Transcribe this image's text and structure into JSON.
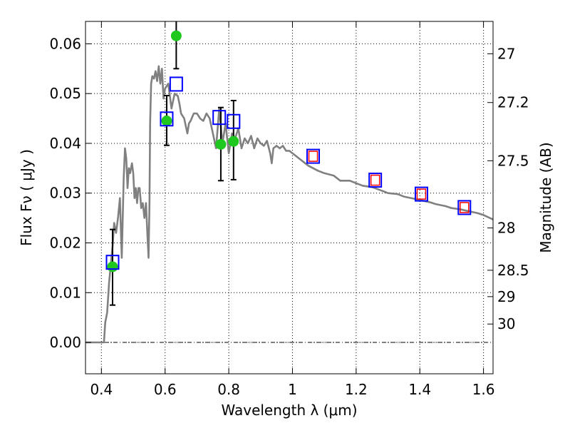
{
  "chart_data": {
    "type": "scatter",
    "title": "",
    "xlabel": "Wavelength  λ (μm)",
    "ylabel": "Flux  Fν  ( μJy )",
    "y2label": "Magnitude (AB)",
    "xlim": [
      0.35,
      1.63
    ],
    "ylim": [
      -0.0063,
      0.0645
    ],
    "grid": true,
    "x_ticks": [
      0.4,
      0.6,
      0.8,
      1.0,
      1.2,
      1.4,
      1.6
    ],
    "x_tick_labels": [
      "0.4",
      "0.6",
      "0.8",
      "1",
      "1.2",
      "1.4",
      "1.6"
    ],
    "y_ticks": [
      0.0,
      0.01,
      0.02,
      0.03,
      0.04,
      0.05,
      0.06
    ],
    "y_tick_labels": [
      "0.00",
      "0.01",
      "0.02",
      "0.03",
      "0.04",
      "0.05",
      "0.06"
    ],
    "y2_ticks": [
      {
        "label": "27",
        "flux": 0.058
      },
      {
        "label": "27.2",
        "flux": 0.0482
      },
      {
        "label": "27.5",
        "flux": 0.0365
      },
      {
        "label": "28",
        "flux": 0.023
      },
      {
        "label": "28.5",
        "flux": 0.0145
      },
      {
        "label": "29",
        "flux": 0.0092
      },
      {
        "label": "30",
        "flux": 0.0037
      }
    ],
    "colors": {
      "model": "#808080",
      "observed": "#1ec81e",
      "model_photometry": "#0000ff",
      "inner_marker": "#ff0000",
      "error_bar": "#000000",
      "zero_line": "#000000"
    },
    "series": [
      {
        "name": "SED model",
        "kind": "line",
        "x": [
          0.35,
          0.408,
          0.412,
          0.418,
          0.424,
          0.43,
          0.436,
          0.44,
          0.446,
          0.452,
          0.458,
          0.464,
          0.47,
          0.474,
          0.478,
          0.482,
          0.486,
          0.49,
          0.496,
          0.5,
          0.504,
          0.508,
          0.512,
          0.516,
          0.52,
          0.525,
          0.53,
          0.535,
          0.54,
          0.545,
          0.548,
          0.551,
          0.553,
          0.556,
          0.56,
          0.565,
          0.57,
          0.575,
          0.58,
          0.585,
          0.59,
          0.595,
          0.6,
          0.61,
          0.62,
          0.63,
          0.64,
          0.645,
          0.65,
          0.66,
          0.67,
          0.675,
          0.68,
          0.69,
          0.7,
          0.71,
          0.72,
          0.73,
          0.74,
          0.75,
          0.76,
          0.77,
          0.78,
          0.79,
          0.8,
          0.81,
          0.82,
          0.83,
          0.84,
          0.85,
          0.86,
          0.87,
          0.88,
          0.89,
          0.9,
          0.91,
          0.92,
          0.93,
          0.935,
          0.94,
          0.95,
          0.96,
          0.97,
          0.98,
          0.99,
          1.0,
          1.02,
          1.05,
          1.08,
          1.1,
          1.13,
          1.15,
          1.18,
          1.2,
          1.22,
          1.25,
          1.28,
          1.3,
          1.33,
          1.35,
          1.38,
          1.4,
          1.43,
          1.45,
          1.48,
          1.5,
          1.53,
          1.55,
          1.58,
          1.6,
          1.63
        ],
        "y": [
          0.0,
          0.0,
          0.004,
          0.006,
          0.012,
          0.016,
          0.02,
          0.024,
          0.022,
          0.025,
          0.029,
          0.017,
          0.033,
          0.039,
          0.037,
          0.031,
          0.035,
          0.034,
          0.036,
          0.034,
          0.029,
          0.031,
          0.028,
          0.031,
          0.031,
          0.027,
          0.028,
          0.025,
          0.028,
          0.021,
          0.017,
          0.028,
          0.044,
          0.052,
          0.0535,
          0.053,
          0.0545,
          0.0525,
          0.0555,
          0.052,
          0.055,
          0.049,
          0.051,
          0.052,
          0.047,
          0.05,
          0.0495,
          0.048,
          0.046,
          0.045,
          0.042,
          0.044,
          0.0445,
          0.046,
          0.046,
          0.045,
          0.0445,
          0.046,
          0.045,
          0.042,
          0.039,
          0.047,
          0.04,
          0.044,
          0.038,
          0.042,
          0.041,
          0.043,
          0.039,
          0.041,
          0.04,
          0.0415,
          0.039,
          0.041,
          0.04,
          0.0395,
          0.0405,
          0.038,
          0.036,
          0.039,
          0.0395,
          0.039,
          0.0395,
          0.0385,
          0.0385,
          0.038,
          0.037,
          0.0355,
          0.0345,
          0.034,
          0.0335,
          0.0325,
          0.0325,
          0.032,
          0.0315,
          0.0312,
          0.0305,
          0.03,
          0.0298,
          0.0293,
          0.0289,
          0.0286,
          0.0282,
          0.0278,
          0.0274,
          0.027,
          0.0267,
          0.0264,
          0.026,
          0.0256,
          0.0247
        ]
      },
      {
        "name": "Observed flux",
        "kind": "points_with_errors",
        "x": [
          0.435,
          0.605,
          0.635,
          0.775,
          0.815
        ],
        "y": [
          0.0152,
          0.0445,
          0.0616,
          0.0398,
          0.0404
        ],
        "yerr_low": [
          0.0077,
          0.0049,
          0.0066,
          0.0073,
          0.0077
        ],
        "yerr_high": [
          0.0075,
          0.0051,
          0.0034,
          0.0074,
          0.0082
        ]
      },
      {
        "name": "Model photometry",
        "kind": "open_squares",
        "x": [
          0.435,
          0.605,
          0.635,
          0.77,
          0.815,
          1.065,
          1.26,
          1.405,
          1.54
        ],
        "y": [
          0.0161,
          0.0449,
          0.0519,
          0.0452,
          0.0444,
          0.0374,
          0.0326,
          0.0298,
          0.0271
        ]
      },
      {
        "name": "Model photometry (inner)",
        "kind": "open_squares_small",
        "x": [
          1.065,
          1.26,
          1.405,
          1.54
        ],
        "y": [
          0.0374,
          0.0326,
          0.0298,
          0.0271
        ]
      }
    ]
  }
}
